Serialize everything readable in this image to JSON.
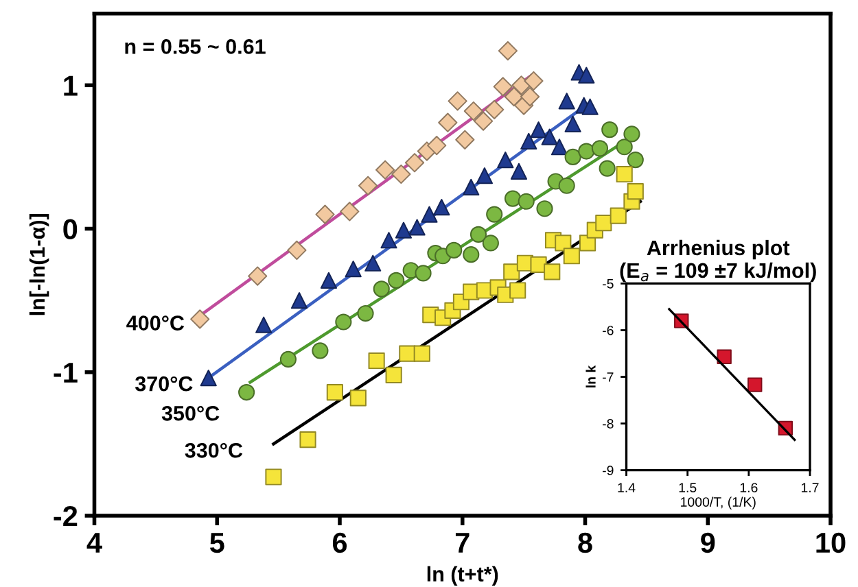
{
  "chart_data": [
    {
      "type": "scatter",
      "xlabel": "ln (t+t*)",
      "ylabel": "ln[-ln(1-α)]",
      "xlim": [
        4,
        10
      ],
      "ylim": [
        -2,
        1.5
      ],
      "xticks": [
        4,
        5,
        6,
        7,
        8,
        9,
        10
      ],
      "yticks": [
        -2,
        -1,
        0,
        1
      ],
      "grid": false,
      "legend": false,
      "annotations": [
        "n = 0.55 ~ 0.61"
      ],
      "series": [
        {
          "name": "400°C",
          "marker": "diamond",
          "color": "#f2c9a0",
          "x": [
            4.86,
            5.33,
            5.65,
            5.88,
            6.08,
            6.23,
            6.37,
            6.5,
            6.61,
            6.71,
            6.79,
            6.88,
            6.96,
            7.02,
            7.09,
            7.17,
            7.26,
            7.33,
            7.37,
            7.42,
            7.48,
            7.5,
            7.55,
            7.58
          ],
          "values": [
            -0.63,
            -0.33,
            -0.15,
            0.1,
            0.12,
            0.3,
            0.41,
            0.38,
            0.46,
            0.54,
            0.58,
            0.74,
            0.89,
            0.62,
            0.82,
            0.75,
            0.83,
            0.99,
            1.24,
            0.92,
            1.0,
            0.86,
            0.92,
            1.03
          ]
        },
        {
          "name": "370°C",
          "marker": "triangle",
          "color": "#1f3a8f",
          "x": [
            4.93,
            5.38,
            5.67,
            5.91,
            6.11,
            6.27,
            6.4,
            6.52,
            6.63,
            6.73,
            6.83,
            7.07,
            7.18,
            7.35,
            7.46,
            7.54,
            7.62,
            7.71,
            7.79,
            7.85,
            7.9,
            7.95,
            7.99,
            8.01,
            8.04
          ],
          "values": [
            -1.04,
            -0.67,
            -0.5,
            -0.36,
            -0.28,
            -0.24,
            -0.08,
            -0.01,
            0.01,
            0.1,
            0.15,
            0.29,
            0.37,
            0.48,
            0.4,
            0.61,
            0.69,
            0.64,
            0.57,
            0.89,
            0.73,
            1.09,
            0.86,
            1.07,
            0.85
          ]
        },
        {
          "name": "350°C",
          "marker": "circle",
          "color": "#7cb842",
          "x": [
            5.24,
            5.58,
            5.84,
            6.03,
            6.21,
            6.34,
            6.46,
            6.58,
            6.68,
            6.78,
            6.84,
            6.93,
            7.07,
            7.13,
            7.23,
            7.26,
            7.41,
            7.52,
            7.67,
            7.76,
            7.85,
            7.9,
            8.01,
            8.12,
            8.18,
            8.2,
            8.32,
            8.38,
            8.41
          ],
          "values": [
            -1.14,
            -0.91,
            -0.85,
            -0.65,
            -0.59,
            -0.42,
            -0.36,
            -0.29,
            -0.31,
            -0.17,
            -0.19,
            -0.15,
            -0.18,
            -0.04,
            -0.1,
            0.1,
            0.21,
            0.19,
            0.14,
            0.33,
            0.3,
            0.5,
            0.54,
            0.56,
            0.42,
            0.69,
            0.57,
            0.66,
            0.48
          ]
        },
        {
          "name": "330°C",
          "marker": "square",
          "color": "#f5e43a",
          "x": [
            5.46,
            5.74,
            5.96,
            6.15,
            6.3,
            6.44,
            6.55,
            6.67,
            6.74,
            6.84,
            6.92,
            6.99,
            7.07,
            7.18,
            7.29,
            7.35,
            7.4,
            7.45,
            7.51,
            7.62,
            7.73,
            7.74,
            7.82,
            7.89,
            8.02,
            8.08,
            8.15,
            8.23,
            8.27,
            8.32,
            8.38,
            8.41
          ],
          "values": [
            -1.73,
            -1.47,
            -1.14,
            -1.18,
            -0.92,
            -1.02,
            -0.87,
            -0.87,
            -0.6,
            -0.62,
            -0.57,
            -0.51,
            -0.44,
            -0.43,
            -0.41,
            -0.46,
            -0.3,
            -0.43,
            -0.24,
            -0.25,
            -0.3,
            -0.08,
            -0.1,
            -0.19,
            -0.1,
            -0.01,
            0.04,
            null,
            0.09,
            0.38,
            0.19,
            0.26
          ]
        },
        {
          "type": "line",
          "color": "#c04c9c",
          "x": [
            4.87,
            7.58
          ],
          "values": [
            -0.6,
            1.08
          ]
        },
        {
          "type": "line",
          "color": "#3a5fc0",
          "x": [
            4.93,
            8.04
          ],
          "values": [
            -1.04,
            0.88
          ]
        },
        {
          "type": "line",
          "color": "#4e9a2e",
          "x": [
            5.27,
            8.38
          ],
          "values": [
            -1.07,
            0.64
          ]
        },
        {
          "type": "line",
          "color": "#000000",
          "x": [
            5.46,
            8.45
          ],
          "values": [
            -1.5,
            0.19
          ]
        }
      ]
    },
    {
      "type": "scatter",
      "title": "Arrhenius plot\n(E$_{a}$ = 109 ±7 kJ/mol)",
      "xlabel": "1000/T, (1/K)",
      "ylabel": "ln k",
      "xlim": [
        1.4,
        1.7
      ],
      "ylim": [
        -9,
        -5
      ],
      "xticks": [
        1.4,
        1.5,
        1.6,
        1.7
      ],
      "yticks": [
        -9,
        -8,
        -7,
        -6,
        -5
      ],
      "grid": false,
      "legend": false,
      "series": [
        {
          "marker": "square",
          "color": "#d4162c",
          "x": [
            1.49,
            1.56,
            1.61,
            1.66
          ],
          "values": [
            -5.8,
            -6.57,
            -7.17,
            -8.1
          ]
        },
        {
          "type": "line",
          "color": "#000000",
          "x": [
            1.47,
            1.675
          ],
          "values": [
            -5.55,
            -8.35
          ]
        }
      ]
    }
  ]
}
